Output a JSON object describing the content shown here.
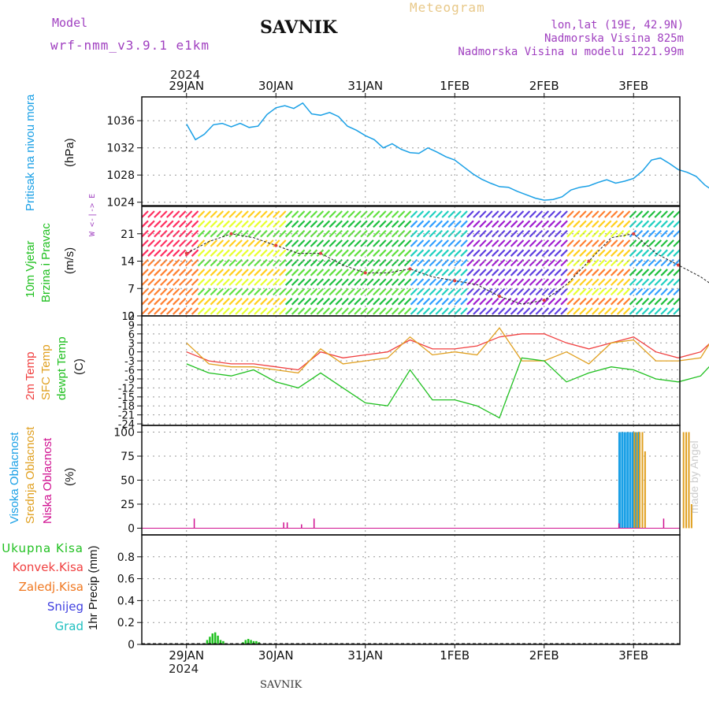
{
  "header": {
    "model_label": "Model",
    "model_name": "wrf-nmm_v3.9.1 e1km",
    "station": "SAVNIK",
    "title": "Meteogram",
    "coords": "lon,lat (19E, 42.9N)",
    "altitude": "Nadmorska Visina 825m",
    "model_altitude": "Nadmorska Visina u modelu 1221.99m",
    "year": "2024",
    "footer_station": "SAVNIK",
    "credit": "made by Angel"
  },
  "colors": {
    "pressure": "#1aa0e6",
    "temp2m": "#f04040",
    "sfc_temp": "#e0a020",
    "dewpt": "#20c020",
    "high_cloud": "#1aa0e6",
    "mid_cloud": "#e0a020",
    "low_cloud": "#d01090",
    "precip": "#20c020",
    "wind_label": "#20c020",
    "purple": "#a040c0"
  },
  "chart_data": [
    {
      "panel": "pressure",
      "type": "line",
      "ylabel_main": "Pritisak na nivou mora",
      "ylabel_unit": "(hPa)",
      "ylim": [
        1023.5,
        1039.5
      ],
      "yticks": [
        1024,
        1028,
        1032,
        1036
      ],
      "x_days": [
        0,
        0.1,
        0.2,
        0.3,
        0.4,
        0.5,
        0.6,
        0.7,
        0.8,
        0.9,
        1.0,
        1.1,
        1.2,
        1.3,
        1.4,
        1.5,
        1.6,
        1.7,
        1.8,
        1.9,
        2.0,
        2.1,
        2.2,
        2.3,
        2.4,
        2.5,
        2.6,
        2.7,
        2.8,
        2.9,
        3.0,
        3.1,
        3.2,
        3.3,
        3.4,
        3.5,
        3.6,
        3.7,
        3.8,
        3.9,
        4.0,
        4.1,
        4.2,
        4.3,
        4.4,
        4.5,
        4.6,
        4.7,
        4.8,
        4.9,
        5.0,
        5.1,
        5.2,
        5.3,
        5.4,
        5.5,
        5.6,
        5.7,
        5.8,
        5.9,
        6.0
      ],
      "values": [
        1035.5,
        1033.2,
        1034.0,
        1035.4,
        1035.6,
        1035.1,
        1035.6,
        1035.0,
        1035.2,
        1036.9,
        1037.9,
        1038.2,
        1037.8,
        1038.6,
        1037.0,
        1036.8,
        1037.2,
        1036.6,
        1035.2,
        1034.6,
        1033.8,
        1033.2,
        1032.0,
        1032.6,
        1031.8,
        1031.3,
        1031.2,
        1032.0,
        1031.4,
        1030.7,
        1030.2,
        1029.2,
        1028.2,
        1027.4,
        1026.8,
        1026.3,
        1026.2,
        1025.6,
        1025.1,
        1024.6,
        1024.3,
        1024.4,
        1024.8,
        1025.8,
        1026.2,
        1026.4,
        1026.9,
        1027.3,
        1026.8,
        1027.1,
        1027.5,
        1028.6,
        1030.2,
        1030.5,
        1029.7,
        1028.8,
        1028.4,
        1027.8,
        1026.5,
        1025.6,
        1025.0
      ]
    },
    {
      "panel": "wind",
      "type": "line",
      "ylabel_main": "10m Vjetar",
      "ylabel_sub": "Brzina i Pravac",
      "ylabel_unit": "(m/s)",
      "compass_legend": "W <-|-> E",
      "ylim": [
        0,
        28
      ],
      "yticks": [
        0,
        7,
        14,
        21
      ],
      "x_days": [
        0,
        0.25,
        0.5,
        0.75,
        1.0,
        1.25,
        1.5,
        1.75,
        2.0,
        2.25,
        2.5,
        2.75,
        3.0,
        3.25,
        3.5,
        3.75,
        4.0,
        4.25,
        4.5,
        4.75,
        5.0,
        5.25,
        5.5,
        5.75,
        6.0
      ],
      "values": [
        16,
        19,
        21,
        20,
        18,
        16,
        16,
        13,
        11,
        11,
        12,
        10,
        9,
        8,
        5,
        3,
        4,
        8,
        14,
        20,
        21,
        16,
        13,
        10,
        6
      ]
    },
    {
      "panel": "temperature",
      "type": "line",
      "ylabel_main": "2m Temp",
      "ylabel_sub": "SFC Temp",
      "ylabel_sub2": "dewpt Temp",
      "ylabel_unit": "(C)",
      "ylim": [
        -24.5,
        12
      ],
      "yticks": [
        -24,
        -21,
        -18,
        -15,
        -12,
        -9,
        -6,
        -3,
        0,
        3,
        6,
        9,
        12
      ],
      "x_days": [
        0,
        0.25,
        0.5,
        0.75,
        1.0,
        1.25,
        1.5,
        1.75,
        2.0,
        2.25,
        2.5,
        2.75,
        3.0,
        3.25,
        3.5,
        3.75,
        4.0,
        4.25,
        4.5,
        4.75,
        5.0,
        5.25,
        5.5,
        5.75,
        6.0
      ],
      "series": [
        {
          "name": "2m Temp",
          "values": [
            0,
            -3,
            -4,
            -4,
            -5,
            -6,
            0,
            -2,
            -1,
            0,
            4,
            1,
            1,
            2,
            5,
            6,
            6,
            3,
            1,
            3,
            5,
            0,
            -2,
            0,
            7
          ]
        },
        {
          "name": "SFC Temp",
          "values": [
            3,
            -4,
            -5,
            -5,
            -6,
            -7,
            1,
            -4,
            -3,
            -2,
            5,
            -1,
            0,
            -1,
            8,
            -3,
            -3,
            0,
            -4,
            3,
            4,
            -3,
            -3,
            -2,
            10
          ]
        },
        {
          "name": "dewpt Temp",
          "values": [
            -4,
            -7,
            -8,
            -6,
            -10,
            -12,
            -7,
            -12,
            -17,
            -18,
            -6,
            -16,
            -16,
            -18,
            -22,
            -2,
            -3,
            -10,
            -7,
            -5,
            -6,
            -9,
            -10,
            -8,
            0
          ]
        }
      ]
    },
    {
      "panel": "clouds",
      "type": "bar",
      "ylabel_main": "Visoka Oblacnost",
      "ylabel_sub": "Srednja Oblacnost",
      "ylabel_sub2": "Niska Oblacnost",
      "ylabel_unit": "(%)",
      "ylim": [
        -7,
        107
      ],
      "yticks": [
        0,
        25,
        50,
        75,
        100
      ],
      "series": [
        {
          "name": "Visoka Oblacnost",
          "x_days": [
            4.83,
            4.86,
            4.89,
            4.92,
            4.95,
            4.98,
            5.01,
            5.04
          ],
          "values": [
            100,
            100,
            100,
            100,
            100,
            100,
            100,
            100
          ]
        },
        {
          "name": "Srednja Oblacnost",
          "x_days": [
            5.0,
            5.03,
            5.06,
            5.09,
            5.12,
            5.55,
            5.58,
            5.61,
            5.64
          ],
          "values": [
            100,
            100,
            100,
            100,
            80,
            100,
            100,
            100,
            25
          ]
        },
        {
          "name": "Niska Oblacnost",
          "x_days": [
            0.08,
            1.08,
            1.12,
            1.28,
            1.42,
            4.83,
            5.33
          ],
          "values": [
            10,
            6,
            6,
            4,
            10,
            5,
            10
          ]
        }
      ]
    },
    {
      "panel": "precip",
      "type": "bar",
      "ylabel_main": "1hr Precip (mm)",
      "ylim": [
        0,
        1.0
      ],
      "yticks": [
        0,
        0.2,
        0.4,
        0.6,
        0.8
      ],
      "legend": [
        "Ukupna Kisa",
        "Konvek.Kisa",
        "Zaledj.Kisa",
        "Snijeg",
        "Grad"
      ],
      "series": [
        {
          "name": "Ukupna Kisa",
          "x_days": [
            0.22,
            0.25,
            0.28,
            0.31,
            0.34,
            0.37,
            0.4,
            0.62,
            0.65,
            0.68,
            0.71,
            0.74,
            0.77,
            0.8
          ],
          "values": [
            0.04,
            0.07,
            0.1,
            0.11,
            0.08,
            0.04,
            0.03,
            0.02,
            0.04,
            0.05,
            0.04,
            0.03,
            0.03,
            0.02
          ]
        }
      ]
    }
  ],
  "x_axis": {
    "start_day_offset": 0.5,
    "ticks": [
      "29JAN",
      "30JAN",
      "31JAN",
      "1FEB",
      "2FEB",
      "3FEB"
    ]
  }
}
